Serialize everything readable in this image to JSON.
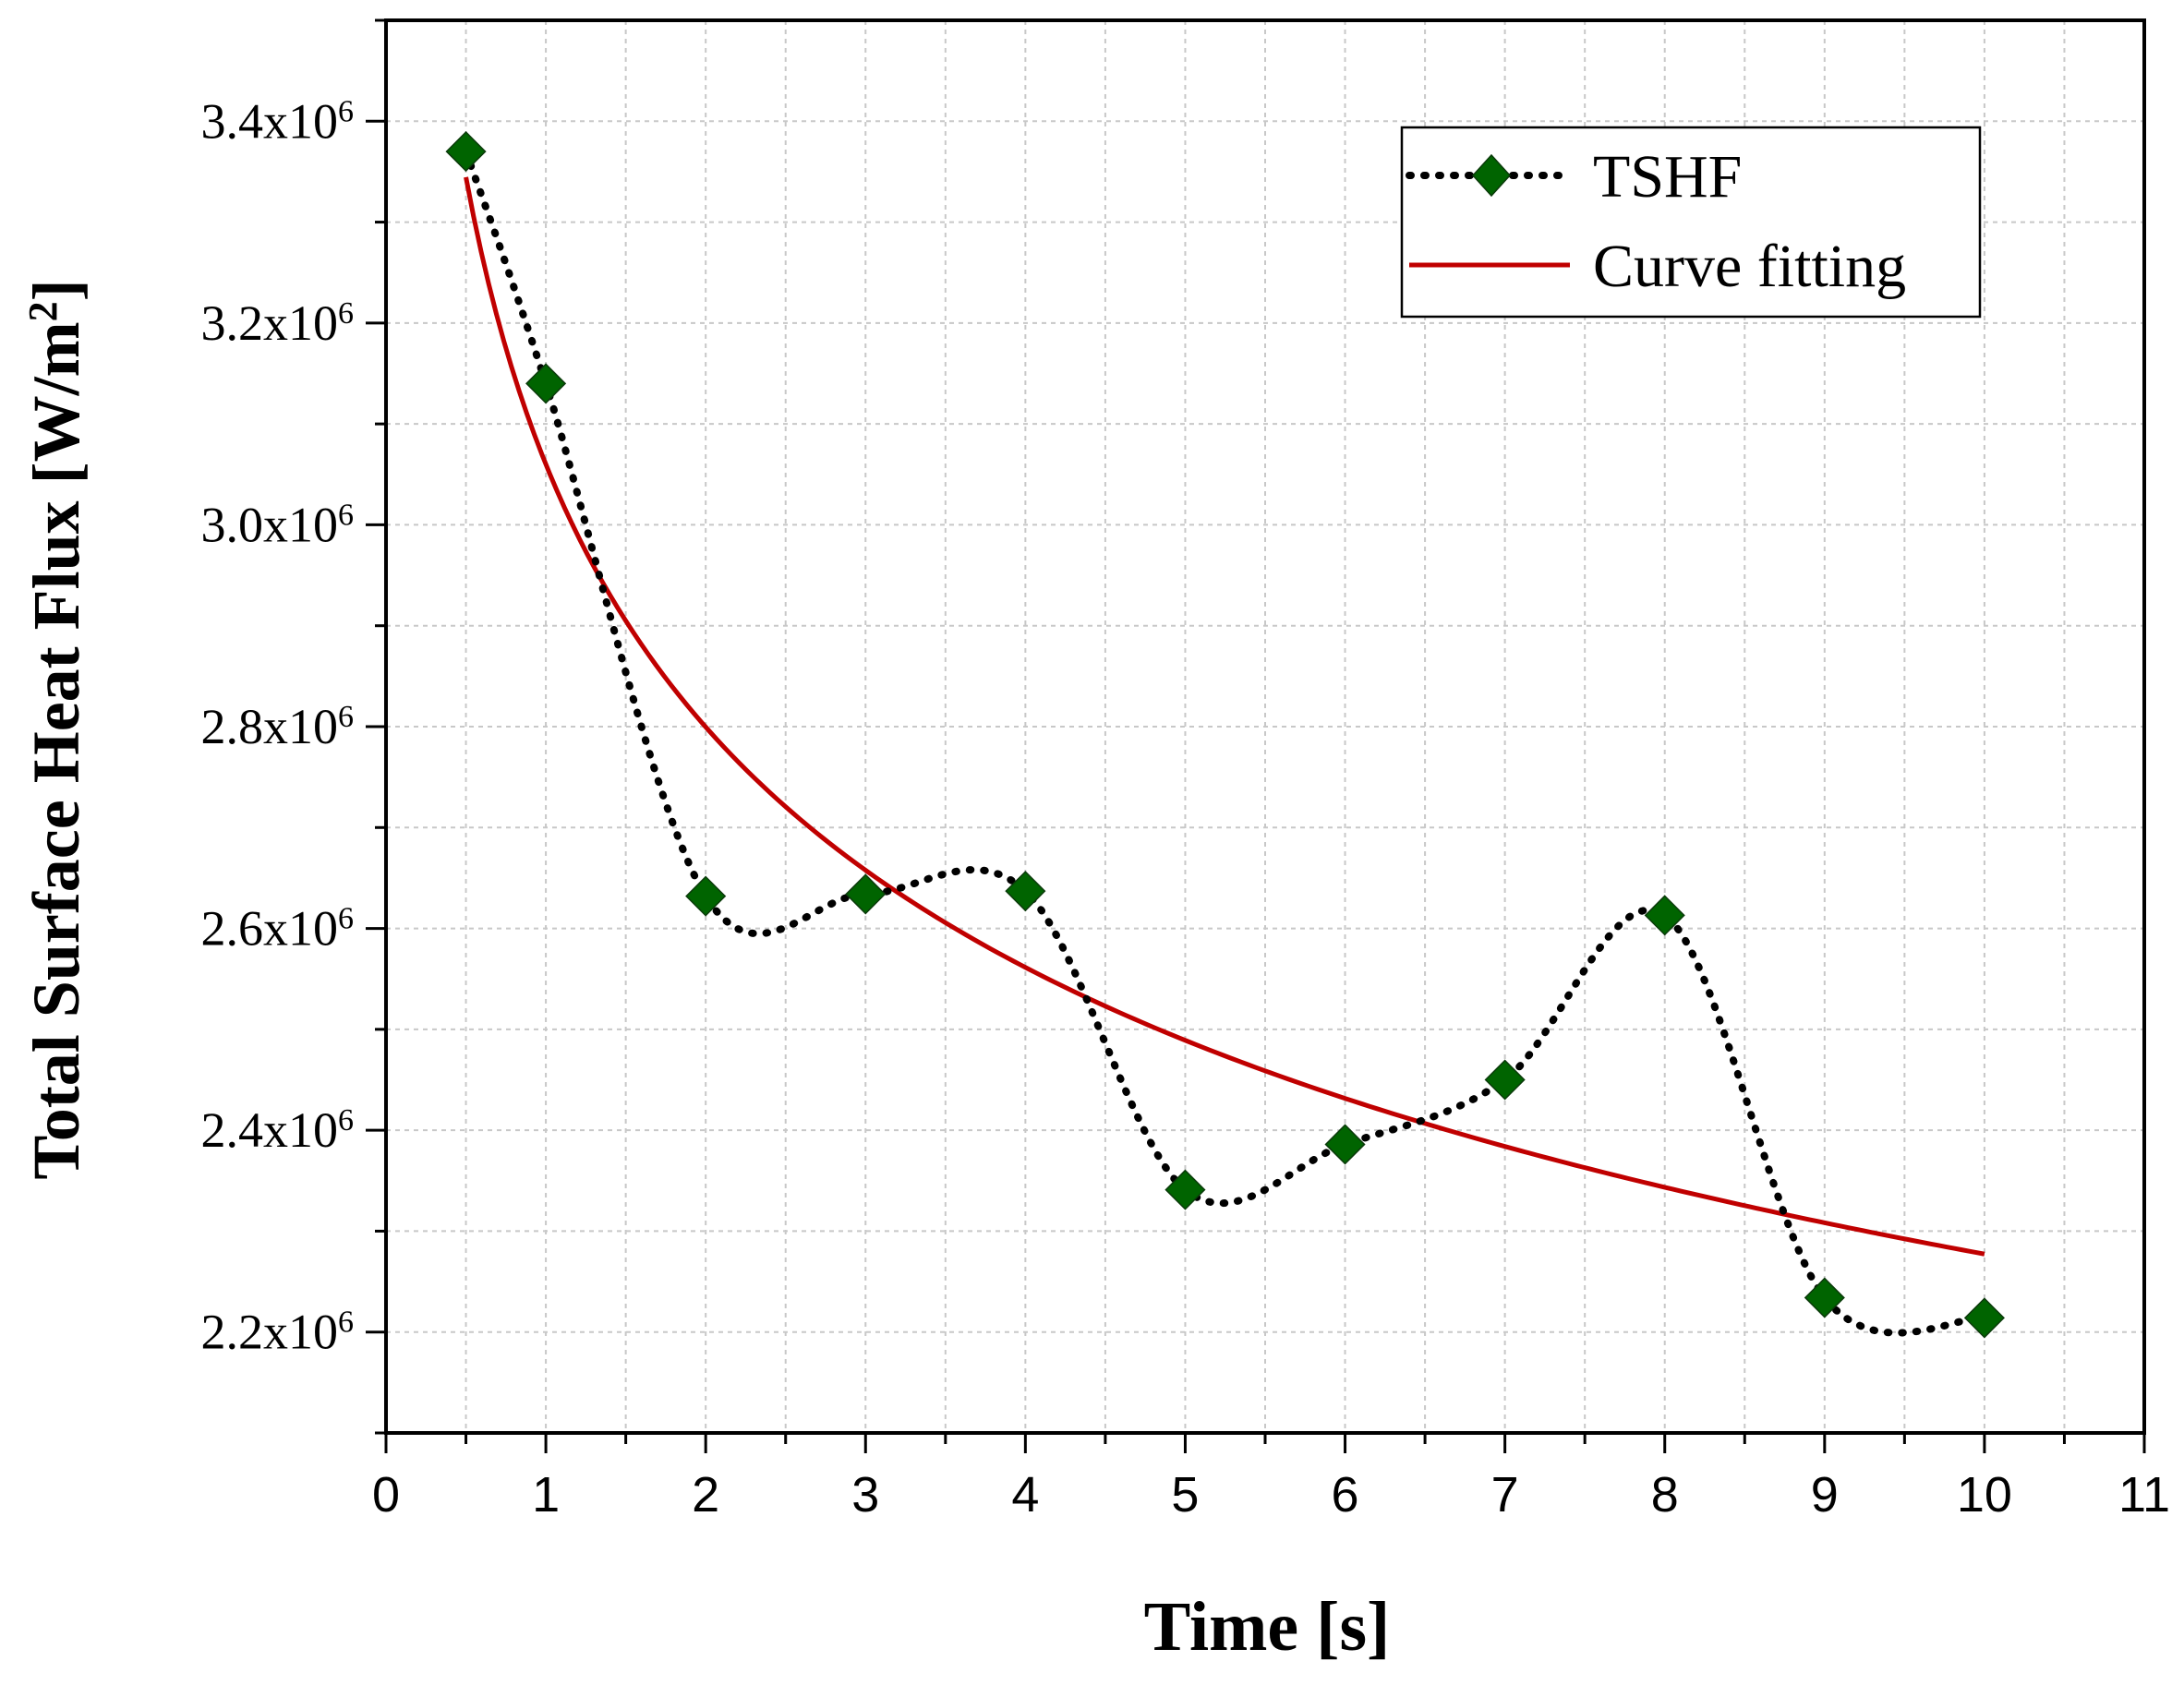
{
  "chart_data": {
    "type": "line",
    "title": "",
    "xlabel": "Time [s]",
    "ylabel": "Total Surface Heat Flux [W/m²]",
    "ylabel_parts": {
      "main": "Total Surface Heat Flux [W/m",
      "sup": "2",
      "end": "]"
    },
    "xlim": [
      0,
      11
    ],
    "ylim": [
      2100000,
      3500000
    ],
    "xticks": [
      0,
      1,
      2,
      3,
      4,
      5,
      6,
      7,
      8,
      9,
      10,
      11
    ],
    "xtick_labels": [
      "0",
      "1",
      "2",
      "3",
      "4",
      "5",
      "6",
      "7",
      "8",
      "9",
      "10",
      "11"
    ],
    "yticks": [
      2200000,
      2400000,
      2600000,
      2800000,
      3000000,
      3200000,
      3400000
    ],
    "ytick_labels": [
      {
        "mant": "2.2x10",
        "exp": "6"
      },
      {
        "mant": "2.4x10",
        "exp": "6"
      },
      {
        "mant": "2.6x10",
        "exp": "6"
      },
      {
        "mant": "2.8x10",
        "exp": "6"
      },
      {
        "mant": "3.0x10",
        "exp": "6"
      },
      {
        "mant": "3.2x10",
        "exp": "6"
      },
      {
        "mant": "3.4x10",
        "exp": "6"
      }
    ],
    "grid": true,
    "legend_position": "top-right",
    "colors": {
      "tshf": "#006400",
      "fit": "#c00000",
      "dots": "#000000",
      "axis": "#000000",
      "grid": "#c8c8c8"
    },
    "series": [
      {
        "name": "TSHF",
        "style": "dotted-line-with-diamond-markers",
        "x": [
          0.5,
          1,
          2,
          3,
          4,
          5,
          6,
          7,
          8,
          9,
          10
        ],
        "y": [
          3370000,
          3140000,
          2632000,
          2634000,
          2637000,
          2341000,
          2386000,
          2450000,
          2613000,
          2234000,
          2214000
        ]
      },
      {
        "name": "Curve fitting",
        "style": "solid-line",
        "model": "power",
        "coefficients": {
          "a": 3060000,
          "b": -0.1283
        },
        "x_range": [
          0.5,
          10
        ]
      }
    ]
  }
}
